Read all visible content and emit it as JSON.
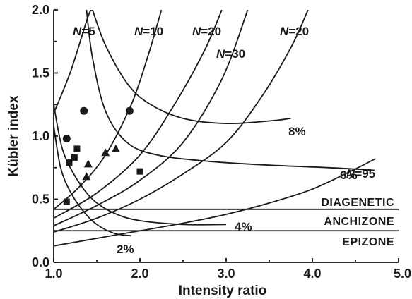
{
  "chart_data": {
    "type": "line",
    "xlabel": "Intensity ratio",
    "ylabel": "Kübler index",
    "xlim": [
      1.0,
      5.0
    ],
    "ylim": [
      0.0,
      2.0
    ],
    "x_ticks": [
      "1.0",
      "2.0",
      "3.0",
      "4.0",
      "5.0"
    ],
    "y_ticks": [
      "0.0",
      "0.5",
      "1.0",
      "1.5",
      "2.0"
    ],
    "crystallite_curves": [
      {
        "label_prefix": "N",
        "label_value": "=5",
        "points": [
          [
            1.0,
            1.18
          ],
          [
            1.2,
            1.52
          ],
          [
            1.4,
            1.95
          ],
          [
            1.45,
            2.0
          ]
        ]
      },
      {
        "label_prefix": "N",
        "label_value": "=10",
        "points": [
          [
            1.0,
            0.42
          ],
          [
            1.3,
            0.6
          ],
          [
            1.6,
            0.85
          ],
          [
            1.9,
            1.25
          ],
          [
            2.1,
            1.65
          ],
          [
            2.25,
            2.0
          ]
        ]
      },
      {
        "label_prefix": "N",
        "label_value": "=20",
        "points": [
          [
            1.0,
            0.35
          ],
          [
            1.5,
            0.55
          ],
          [
            2.0,
            0.85
          ],
          [
            2.4,
            1.25
          ],
          [
            2.75,
            1.68
          ],
          [
            2.95,
            2.0
          ]
        ]
      },
      {
        "label_prefix": "N",
        "label_value": "=30",
        "points": [
          [
            1.0,
            0.29
          ],
          [
            1.5,
            0.45
          ],
          [
            2.0,
            0.65
          ],
          [
            2.5,
            0.95
          ],
          [
            2.95,
            1.45
          ],
          [
            3.25,
            2.0
          ]
        ]
      },
      {
        "label_prefix": "N",
        "label_value": "=20",
        "points": [
          [
            1.0,
            0.24
          ],
          [
            1.5,
            0.35
          ],
          [
            2.0,
            0.5
          ],
          [
            2.5,
            0.7
          ],
          [
            3.0,
            0.95
          ],
          [
            3.4,
            1.3
          ],
          [
            3.75,
            1.7
          ],
          [
            3.95,
            2.0
          ]
        ]
      },
      {
        "label_prefix": "N",
        "label_value": "=95",
        "points": [
          [
            1.0,
            0.13
          ],
          [
            1.5,
            0.19
          ],
          [
            2.0,
            0.25
          ],
          [
            2.5,
            0.31
          ],
          [
            3.0,
            0.38
          ],
          [
            3.5,
            0.47
          ],
          [
            4.0,
            0.58
          ],
          [
            4.5,
            0.74
          ],
          [
            4.73,
            0.82
          ]
        ]
      }
    ],
    "smectite_curves": [
      {
        "label": "8%",
        "points": [
          [
            1.45,
            2.0
          ],
          [
            1.6,
            1.72
          ],
          [
            1.85,
            1.42
          ],
          [
            2.1,
            1.26
          ],
          [
            2.5,
            1.14
          ],
          [
            3.0,
            1.1
          ],
          [
            3.5,
            1.12
          ],
          [
            3.75,
            1.14
          ]
        ]
      },
      {
        "label": "6%",
        "points": [
          [
            1.38,
            2.0
          ],
          [
            1.45,
            1.62
          ],
          [
            1.6,
            1.2
          ],
          [
            1.85,
            0.95
          ],
          [
            2.2,
            0.85
          ],
          [
            2.8,
            0.8
          ],
          [
            3.5,
            0.77
          ],
          [
            4.2,
            0.75
          ],
          [
            4.7,
            0.73
          ]
        ]
      },
      {
        "label": "4%",
        "points": [
          [
            1.0,
            1.25
          ],
          [
            1.1,
            0.9
          ],
          [
            1.25,
            0.68
          ],
          [
            1.45,
            0.5
          ],
          [
            1.7,
            0.39
          ],
          [
            2.0,
            0.33
          ],
          [
            2.5,
            0.3
          ],
          [
            3.0,
            0.3
          ]
        ]
      },
      {
        "label": "2%",
        "points": [
          [
            1.0,
            1.08
          ],
          [
            1.08,
            0.75
          ],
          [
            1.2,
            0.55
          ],
          [
            1.35,
            0.4
          ],
          [
            1.5,
            0.3
          ],
          [
            1.7,
            0.23
          ],
          [
            1.9,
            0.21
          ]
        ]
      }
    ],
    "zone_boundaries": [
      0.42,
      0.25
    ],
    "zone_labels": [
      "DIAGENETIC",
      "ANCHIZONE",
      "EPIZONE"
    ],
    "series": [
      {
        "marker": "circle",
        "points": [
          [
            1.15,
            0.98
          ],
          [
            1.35,
            1.2
          ],
          [
            1.88,
            1.2
          ]
        ]
      },
      {
        "marker": "square",
        "points": [
          [
            1.18,
            0.79
          ],
          [
            1.24,
            0.83
          ],
          [
            1.27,
            0.9
          ],
          [
            2.0,
            0.72
          ],
          [
            1.15,
            0.48
          ]
        ]
      },
      {
        "marker": "triangle",
        "points": [
          [
            1.4,
            0.78
          ],
          [
            1.38,
            0.68
          ],
          [
            1.6,
            0.87
          ],
          [
            1.72,
            0.9
          ]
        ]
      }
    ]
  }
}
